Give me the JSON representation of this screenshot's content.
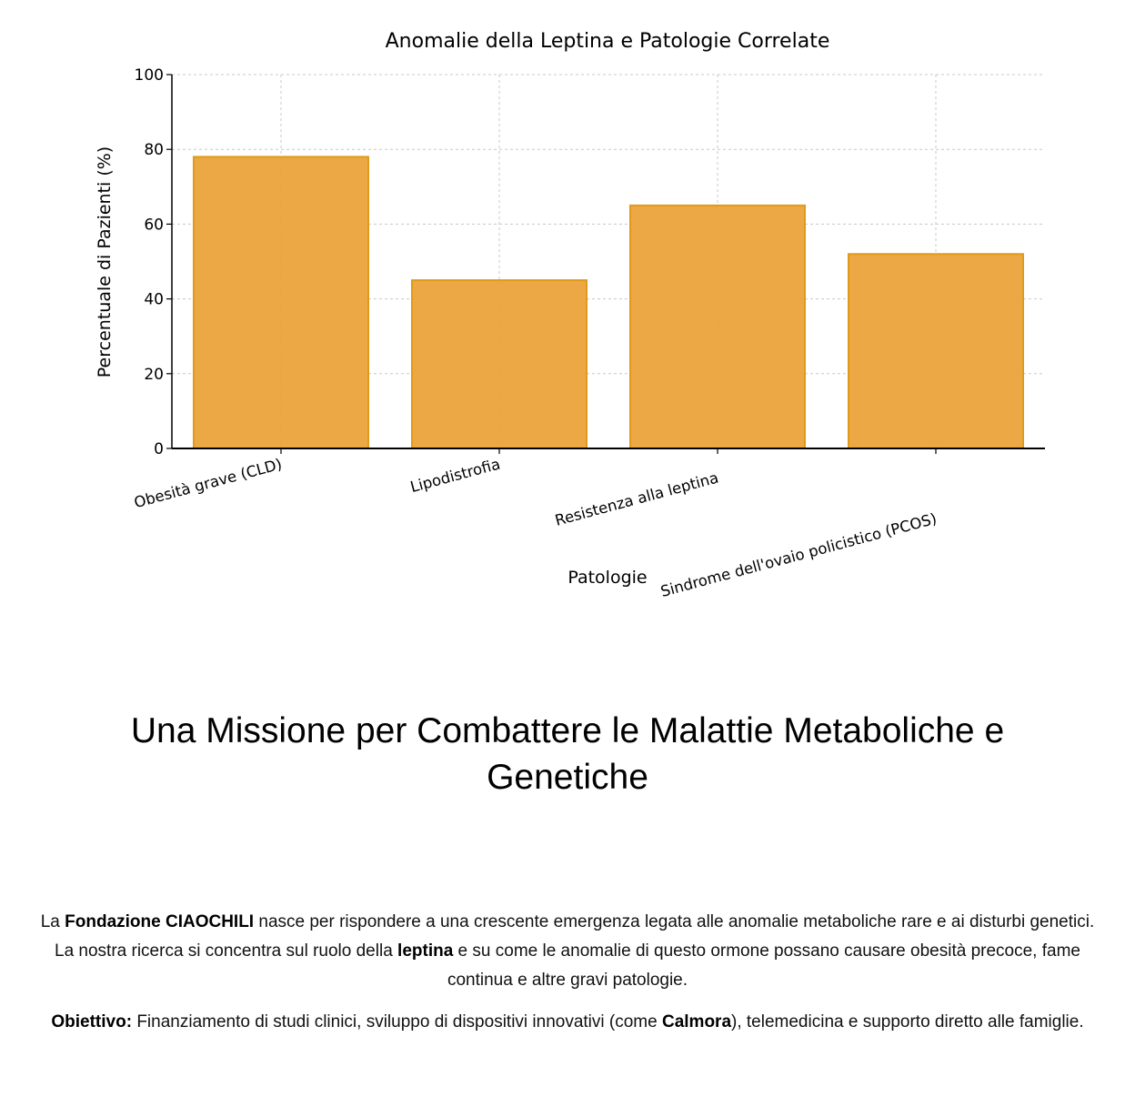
{
  "chart_data": {
    "type": "bar",
    "title": "Anomalie della Leptina e Patologie Correlate",
    "xlabel": "Patologie",
    "ylabel": "Percentuale di Pazienti (%)",
    "categories": [
      "Obesità grave (CLD)",
      "Lipodistrofia",
      "Resistenza alla leptina",
      "Sindrome dell'ovaio policistico (PCOS)"
    ],
    "values": [
      78,
      45,
      65,
      52
    ],
    "ylim": [
      0,
      100
    ],
    "yticks": [
      0,
      20,
      40,
      60,
      80,
      100
    ],
    "grid": true,
    "bar_color": "#EBA33A",
    "bar_edge_color": "#E09A1A"
  },
  "mission": {
    "title": "Una Missione per Combattere le Malattie Metaboliche e Genetiche",
    "p1": [
      {
        "text": "La ",
        "bold": false
      },
      {
        "text": "Fondazione CIAOCHILI",
        "bold": true
      },
      {
        "text": " nasce per rispondere a una crescente emergenza legata alle anomalie metaboliche rare e ai disturbi genetici. La nostra ricerca si concentra sul ruolo della ",
        "bold": false
      },
      {
        "text": "leptina",
        "bold": true
      },
      {
        "text": " e su come le anomalie di questo ormone possano causare obesità precoce, fame continua e altre gravi patologie.",
        "bold": false
      }
    ],
    "p2": [
      {
        "text": "Obiettivo:",
        "bold": true
      },
      {
        "text": " Finanziamento di studi clinici, sviluppo di dispositivi innovativi (come ",
        "bold": false
      },
      {
        "text": "Calmora",
        "bold": true
      },
      {
        "text": "), telemedicina e supporto diretto alle famiglie.",
        "bold": false
      }
    ]
  }
}
